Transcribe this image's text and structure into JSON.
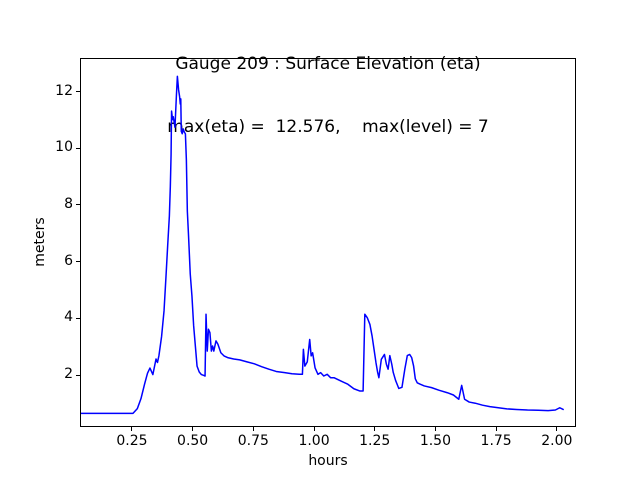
{
  "figure": {
    "title_line1": "Gauge 209 : Surface Elevation (eta)",
    "title_line2": "max(eta) =  12.576,    max(level) = 7",
    "xlabel": "hours",
    "ylabel": "meters"
  },
  "chart_data": {
    "type": "line",
    "title": "Gauge 209 : Surface Elevation (eta)",
    "subtitle": "max(eta) =  12.576,    max(level) = 7",
    "xlabel": "hours",
    "ylabel": "meters",
    "max_eta": 12.576,
    "max_level": 7,
    "grid": false,
    "legend": "none",
    "line_color": "#0000ff",
    "line_width": 1.5,
    "xlim": [
      0.036,
      2.079
    ],
    "ylim": [
      0.165,
      13.188
    ],
    "x_tick_values": [
      0.25,
      0.5,
      0.75,
      1.0,
      1.25,
      1.5,
      1.75,
      2.0
    ],
    "x_tick_labels": [
      "0.25",
      "0.50",
      "0.75",
      "1.00",
      "1.25",
      "1.50",
      "1.75",
      "2.00"
    ],
    "y_tick_values": [
      2,
      4,
      6,
      8,
      10,
      12
    ],
    "y_tick_labels": [
      "2",
      "4",
      "6",
      "8",
      "10",
      "12"
    ],
    "series": [
      {
        "name": "eta",
        "points": [
          [
            0.036,
            0.68
          ],
          [
            0.25,
            0.68
          ],
          [
            0.268,
            0.85
          ],
          [
            0.283,
            1.2
          ],
          [
            0.298,
            1.72
          ],
          [
            0.31,
            2.1
          ],
          [
            0.32,
            2.28
          ],
          [
            0.332,
            2.05
          ],
          [
            0.345,
            2.6
          ],
          [
            0.351,
            2.48
          ],
          [
            0.357,
            2.72
          ],
          [
            0.368,
            3.4
          ],
          [
            0.378,
            4.3
          ],
          [
            0.386,
            5.5
          ],
          [
            0.393,
            6.6
          ],
          [
            0.4,
            7.65
          ],
          [
            0.404,
            8.7
          ],
          [
            0.407,
            9.8
          ],
          [
            0.409,
            11.35
          ],
          [
            0.413,
            11.05
          ],
          [
            0.416,
            11.15
          ],
          [
            0.423,
            10.78
          ],
          [
            0.429,
            11.9
          ],
          [
            0.433,
            12.576
          ],
          [
            0.438,
            12.1
          ],
          [
            0.442,
            11.87
          ],
          [
            0.445,
            11.6
          ],
          [
            0.447,
            11.78
          ],
          [
            0.449,
            10.64
          ],
          [
            0.453,
            10.55
          ],
          [
            0.457,
            10.72
          ],
          [
            0.462,
            10.6
          ],
          [
            0.466,
            10.55
          ],
          [
            0.47,
            9.63
          ],
          [
            0.474,
            7.82
          ],
          [
            0.479,
            6.94
          ],
          [
            0.486,
            5.6
          ],
          [
            0.493,
            4.82
          ],
          [
            0.5,
            3.77
          ],
          [
            0.507,
            3.06
          ],
          [
            0.514,
            2.35
          ],
          [
            0.523,
            2.14
          ],
          [
            0.532,
            2.05
          ],
          [
            0.542,
            2.02
          ],
          [
            0.547,
            2.0
          ],
          [
            0.551,
            4.18
          ],
          [
            0.556,
            2.88
          ],
          [
            0.561,
            3.65
          ],
          [
            0.567,
            3.53
          ],
          [
            0.573,
            2.88
          ],
          [
            0.578,
            3.06
          ],
          [
            0.583,
            2.88
          ],
          [
            0.592,
            3.24
          ],
          [
            0.6,
            3.12
          ],
          [
            0.612,
            2.82
          ],
          [
            0.625,
            2.71
          ],
          [
            0.64,
            2.65
          ],
          [
            0.665,
            2.6
          ],
          [
            0.69,
            2.57
          ],
          [
            0.72,
            2.5
          ],
          [
            0.75,
            2.43
          ],
          [
            0.78,
            2.33
          ],
          [
            0.81,
            2.24
          ],
          [
            0.84,
            2.16
          ],
          [
            0.875,
            2.12
          ],
          [
            0.905,
            2.08
          ],
          [
            0.935,
            2.06
          ],
          [
            0.948,
            2.06
          ],
          [
            0.952,
            2.94
          ],
          [
            0.958,
            2.35
          ],
          [
            0.968,
            2.5
          ],
          [
            0.978,
            3.29
          ],
          [
            0.984,
            2.71
          ],
          [
            0.99,
            2.82
          ],
          [
            1.0,
            2.29
          ],
          [
            1.012,
            2.06
          ],
          [
            1.023,
            2.12
          ],
          [
            1.036,
            2.0
          ],
          [
            1.05,
            2.06
          ],
          [
            1.064,
            1.94
          ],
          [
            1.078,
            1.94
          ],
          [
            1.107,
            1.82
          ],
          [
            1.135,
            1.71
          ],
          [
            1.16,
            1.55
          ],
          [
            1.185,
            1.47
          ],
          [
            1.198,
            1.47
          ],
          [
            1.205,
            4.18
          ],
          [
            1.215,
            4.06
          ],
          [
            1.226,
            3.82
          ],
          [
            1.235,
            3.41
          ],
          [
            1.243,
            2.94
          ],
          [
            1.251,
            2.47
          ],
          [
            1.258,
            2.12
          ],
          [
            1.263,
            1.94
          ],
          [
            1.273,
            2.59
          ],
          [
            1.286,
            2.76
          ],
          [
            1.294,
            2.41
          ],
          [
            1.301,
            2.24
          ],
          [
            1.308,
            2.72
          ],
          [
            1.316,
            2.42
          ],
          [
            1.322,
            2.13
          ],
          [
            1.332,
            1.84
          ],
          [
            1.345,
            1.56
          ],
          [
            1.358,
            1.6
          ],
          [
            1.37,
            2.25
          ],
          [
            1.38,
            2.72
          ],
          [
            1.39,
            2.76
          ],
          [
            1.398,
            2.65
          ],
          [
            1.406,
            2.35
          ],
          [
            1.413,
            1.9
          ],
          [
            1.421,
            1.76
          ],
          [
            1.433,
            1.71
          ],
          [
            1.45,
            1.65
          ],
          [
            1.48,
            1.59
          ],
          [
            1.51,
            1.5
          ],
          [
            1.545,
            1.41
          ],
          [
            1.57,
            1.33
          ],
          [
            1.592,
            1.18
          ],
          [
            1.604,
            1.67
          ],
          [
            1.616,
            1.18
          ],
          [
            1.635,
            1.08
          ],
          [
            1.66,
            1.04
          ],
          [
            1.69,
            0.97
          ],
          [
            1.72,
            0.92
          ],
          [
            1.755,
            0.88
          ],
          [
            1.79,
            0.84
          ],
          [
            1.83,
            0.82
          ],
          [
            1.875,
            0.8
          ],
          [
            1.92,
            0.79
          ],
          [
            1.96,
            0.78
          ],
          [
            1.99,
            0.8
          ],
          [
            2.008,
            0.88
          ],
          [
            2.022,
            0.82
          ]
        ]
      }
    ]
  }
}
